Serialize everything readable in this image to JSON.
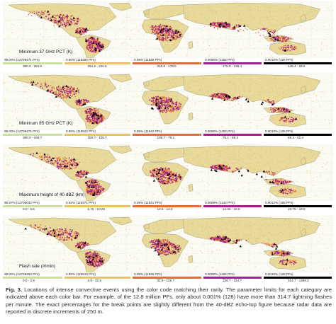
{
  "colors": {
    "c1": "#cde0a0",
    "c2": "#e8c368",
    "c3": "#e06e3b",
    "c4": "#a0208c",
    "c5": "#000000",
    "ocean": "#fbfbf4",
    "land": "#e9d99a"
  },
  "panels": [
    {
      "label": "Minimum 37 GHz PCT (K)",
      "categories": [
        {
          "pct": "99.00% (12709471 PFs)",
          "range": "380.0 - 254.6",
          "color": "#cde0a0"
        },
        {
          "pct": "0.90% (115480 PFs)",
          "range": "254.6 - 220.6",
          "color": "#e8c368"
        },
        {
          "pct": "0.09% (11548 PFs)",
          "range": "220.6 - 178.0",
          "color": "#e06e3b"
        },
        {
          "pct": "0.0090% (1152 PFs)",
          "range": "178.0 - 138.4",
          "color": "#a0208c"
        },
        {
          "pct": "0.0010% (128 PFs)",
          "range": "138.4 - 83.6",
          "color": "#000000"
        }
      ]
    },
    {
      "label": "Minimum 85 GHz PCT (K)",
      "categories": [
        {
          "pct": "99.00% (12709475 PFs)",
          "range": "380.0 - 159.7",
          "color": "#cde0a0"
        },
        {
          "pct": "0.90% (115522 PFs)",
          "range": "159.7 - 105.7",
          "color": "#e8c368"
        },
        {
          "pct": "0.09% (11542 PFs)",
          "range": "105.7 - 75.1",
          "color": "#e06e3b"
        },
        {
          "pct": "0.0090% (1152 PFs)",
          "range": "75.1 - 59.3",
          "color": "#a0208c"
        },
        {
          "pct": "0.0010% (128 PFs)",
          "range": "59.3 - 42.4",
          "color": "#000000"
        }
      ]
    },
    {
      "label": "Maximum height of 40 dBZ (km)",
      "categories": [
        {
          "pct": "98.97% (12705032 PFs)",
          "range": "0.0 - 6.5",
          "color": "#cde0a0"
        },
        {
          "pct": "0.93% (119371 PFs)",
          "range": "6.75 - 10.25",
          "color": "#e8c368"
        },
        {
          "pct": "0.09% (11541 PFs)",
          "range": "10.5 - 14.0",
          "color": "#e06e3b"
        },
        {
          "pct": "0.0089% (1142 PFs)",
          "range": "14.25 - 16.5",
          "color": "#a0208c"
        },
        {
          "pct": "0.0012% (155 PFs)",
          "range": "16.75 - 19.5",
          "color": "#000000"
        }
      ]
    },
    {
      "label": "Flash rate (#/min)",
      "categories": [
        {
          "pct": "99.00% (12709483 PFs)",
          "range": "0.0 - 2.9",
          "color": "#cde0a0"
        },
        {
          "pct": "0.90% (115513 PFs)",
          "range": "2.9 - 32.9",
          "color": "#e8c368"
        },
        {
          "pct": "0.09% (11546 PFs)",
          "range": "32.9 - 126.7",
          "color": "#e06e3b"
        },
        {
          "pct": "0.0090% (1152 PFs)",
          "range": "126.7 - 314.7",
          "color": "#a0208c"
        },
        {
          "pct": "0.0010% (128 PFs)",
          "range": "314.7 - 1389.3",
          "color": "#000000"
        }
      ]
    }
  ],
  "caption": {
    "label": "Fig. 3.",
    "text": "Locations of intense convective events using the color code matching their rarity. The parameter limits for each category are indicated above each color bar. For example, of the 12.8 million PFs, only about 0.001% (128) have more than 314.7 lightning flashes per minute. The exact percentages for the break points are slightly different from the 40-dBZ echo-top figure because radar data are reported in discrete increments of 250 m."
  }
}
